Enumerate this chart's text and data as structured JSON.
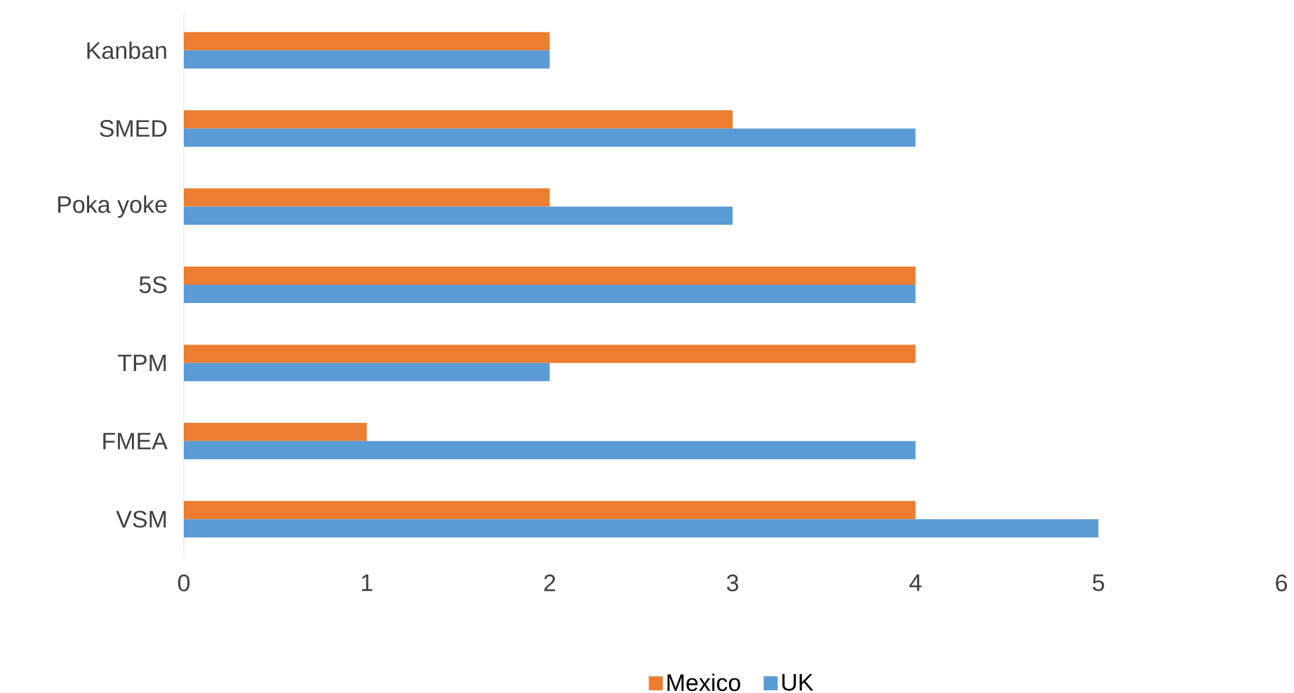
{
  "chart_data": {
    "type": "bar",
    "orientation": "horizontal",
    "categories": [
      "Kanban",
      "SMED",
      "Poka yoke",
      "5S",
      "TPM",
      "FMEA",
      "VSM"
    ],
    "series": [
      {
        "name": "Mexico",
        "color": "#ed7d31",
        "values": [
          2,
          3,
          2,
          4,
          4,
          1,
          4
        ]
      },
      {
        "name": "UK",
        "color": "#5b9bd5",
        "values": [
          2,
          4,
          3,
          4,
          2,
          4,
          5
        ]
      }
    ],
    "xlim": [
      0,
      6
    ],
    "xticks": [
      0,
      1,
      2,
      3,
      4,
      5,
      6
    ],
    "legend": "bottom"
  }
}
